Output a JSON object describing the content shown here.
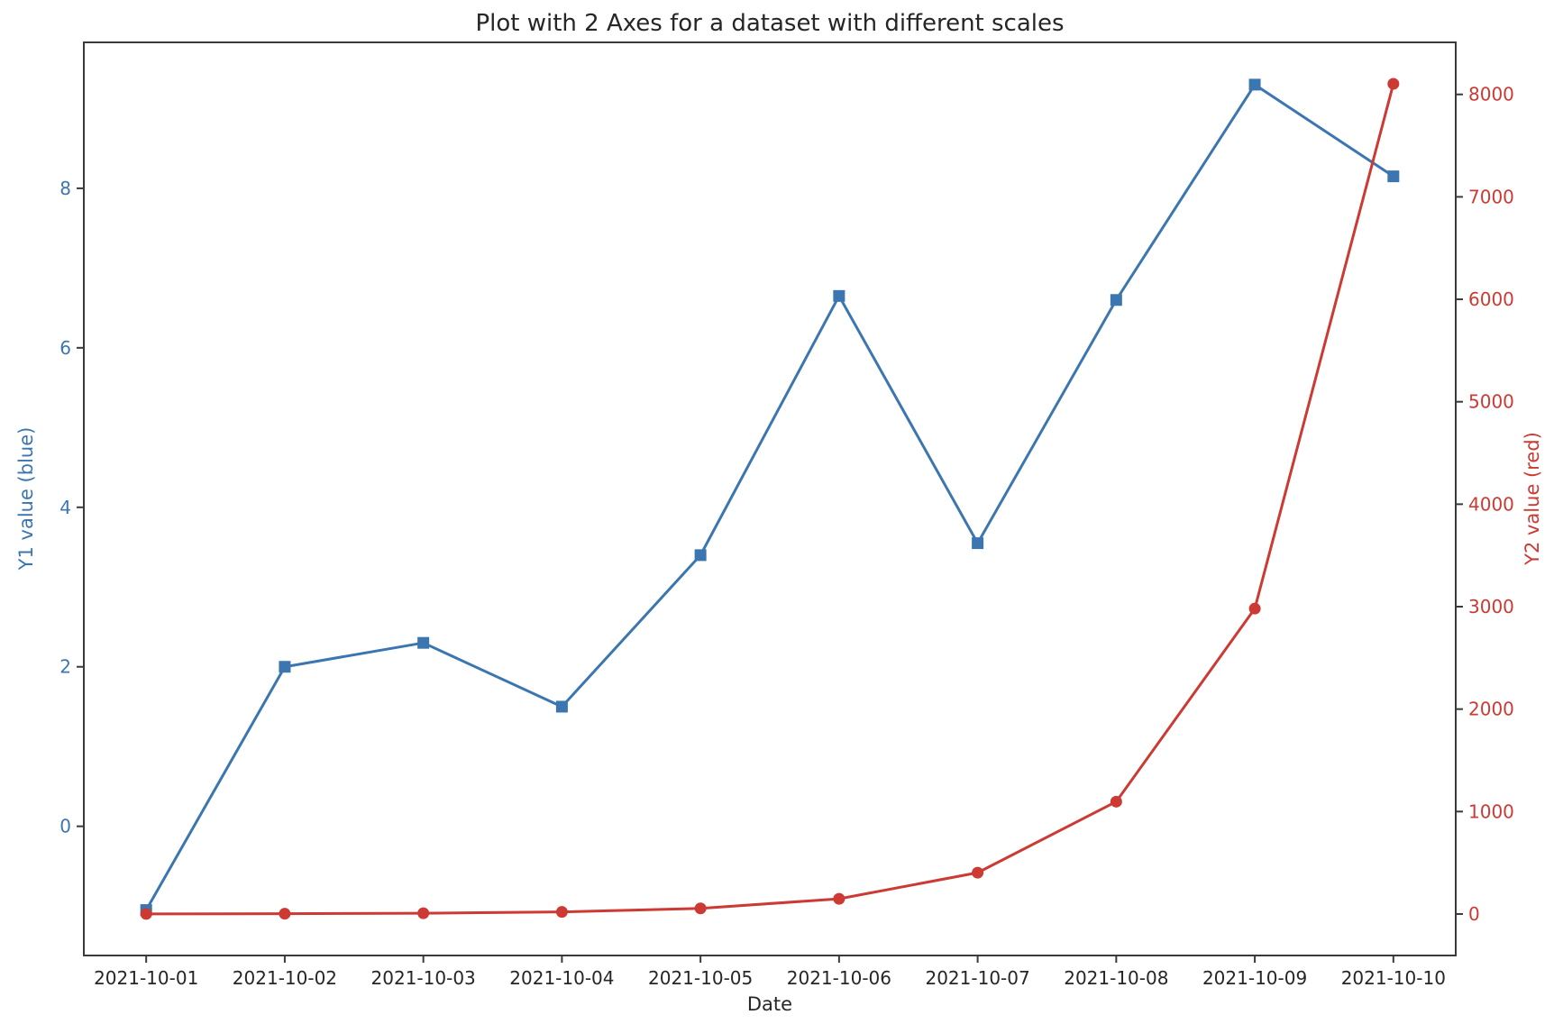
{
  "chart_data": {
    "type": "line",
    "title": "Plot with 2 Axes for a dataset with different scales",
    "xlabel": "Date",
    "x_categories": [
      "2021-10-01",
      "2021-10-02",
      "2021-10-03",
      "2021-10-04",
      "2021-10-05",
      "2021-10-06",
      "2021-10-07",
      "2021-10-08",
      "2021-10-09",
      "2021-10-10"
    ],
    "x_lim": [
      -0.45,
      9.45
    ],
    "grid": false,
    "legend": "none",
    "frame_color": "#3a3a3a",
    "text_color": "#262626",
    "left_axis": {
      "label": "Y1 value (blue)",
      "color": "#3c76b0",
      "ticks": [
        0,
        2,
        4,
        6,
        8
      ],
      "lim": [
        -1.62,
        9.83
      ]
    },
    "right_axis": {
      "label": "Y2 value (red)",
      "color": "#cc3a33",
      "ticks": [
        0,
        1000,
        2000,
        3000,
        4000,
        5000,
        6000,
        7000,
        8000
      ],
      "lim": [
        -405,
        8508
      ]
    },
    "series": [
      {
        "name": "Y1",
        "axis": "left",
        "color": "#3c76b0",
        "marker": "square",
        "values": [
          -1.05,
          2.0,
          2.3,
          1.5,
          3.4,
          6.65,
          3.55,
          6.6,
          9.3,
          8.15
        ]
      },
      {
        "name": "Y2",
        "axis": "right",
        "color": "#cc3a33",
        "marker": "circle",
        "values": [
          1.0,
          2.72,
          7.39,
          20.09,
          54.6,
          148.41,
          403.43,
          1096.63,
          2980.96,
          8103.08
        ]
      }
    ]
  }
}
